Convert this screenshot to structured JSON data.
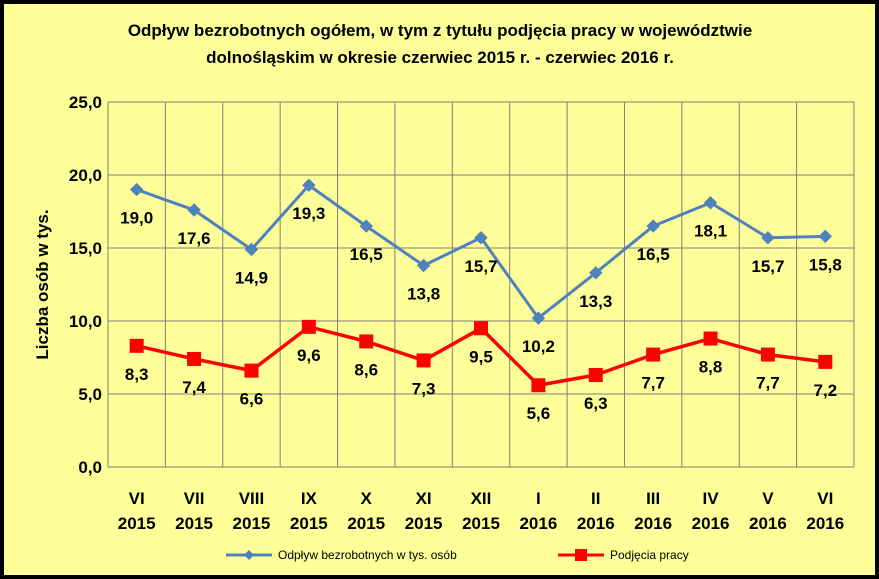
{
  "chart_data": {
    "type": "line",
    "title_lines": [
      "Odpływ bezrobotnych ogółem, w tym z tytułu podjęcia pracy  w województwie",
      "dolnośląskim  w okresie  czerwiec 2015 r. - czerwiec 2016 r."
    ],
    "ylabel": "Liczba osób w tys.",
    "xlabel": "",
    "ylim": [
      0,
      25
    ],
    "y_ticks": [
      "0,0",
      "5,0",
      "10,0",
      "15,0",
      "20,0",
      "25,0"
    ],
    "grid": true,
    "legend_position": "bottom",
    "categories": [
      {
        "month": "VI",
        "year": "2015"
      },
      {
        "month": "VII",
        "year": "2015"
      },
      {
        "month": "VIII",
        "year": "2015"
      },
      {
        "month": "IX",
        "year": "2015"
      },
      {
        "month": "X",
        "year": "2015"
      },
      {
        "month": "XI",
        "year": "2015"
      },
      {
        "month": "XII",
        "year": "2015"
      },
      {
        "month": "I",
        "year": "2016"
      },
      {
        "month": "II",
        "year": "2016"
      },
      {
        "month": "III",
        "year": "2016"
      },
      {
        "month": "IV",
        "year": "2016"
      },
      {
        "month": "V",
        "year": "2016"
      },
      {
        "month": "VI",
        "year": "2016"
      }
    ],
    "series": [
      {
        "name": "Odpływ bezrobotnych w tys. osób",
        "color": "#4F81BD",
        "marker": "diamond",
        "values": [
          19.0,
          17.6,
          14.9,
          19.3,
          16.5,
          13.8,
          15.7,
          10.2,
          13.3,
          16.5,
          18.1,
          15.7,
          15.8
        ],
        "labels": [
          "19,0",
          "17,6",
          "14,9",
          "19,3",
          "16,5",
          "13,8",
          "15,7",
          "10,2",
          "13,3",
          "16,5",
          "18,1",
          "15,7",
          "15,8"
        ]
      },
      {
        "name": "Podjęcia pracy",
        "color": "#FF0000",
        "marker": "square",
        "values": [
          8.3,
          7.4,
          6.6,
          9.6,
          8.6,
          7.3,
          9.5,
          5.6,
          6.3,
          7.7,
          8.8,
          7.7,
          7.2
        ],
        "labels": [
          "8,3",
          "7,4",
          "6,6",
          "9,6",
          "8,6",
          "7,3",
          "9,5",
          "5,6",
          "6,3",
          "7,7",
          "8,8",
          "7,7",
          "7,2"
        ]
      }
    ]
  },
  "style": {
    "background": "#FFFF99",
    "frame": "#000000",
    "grid_color": "#7F7F7F"
  }
}
